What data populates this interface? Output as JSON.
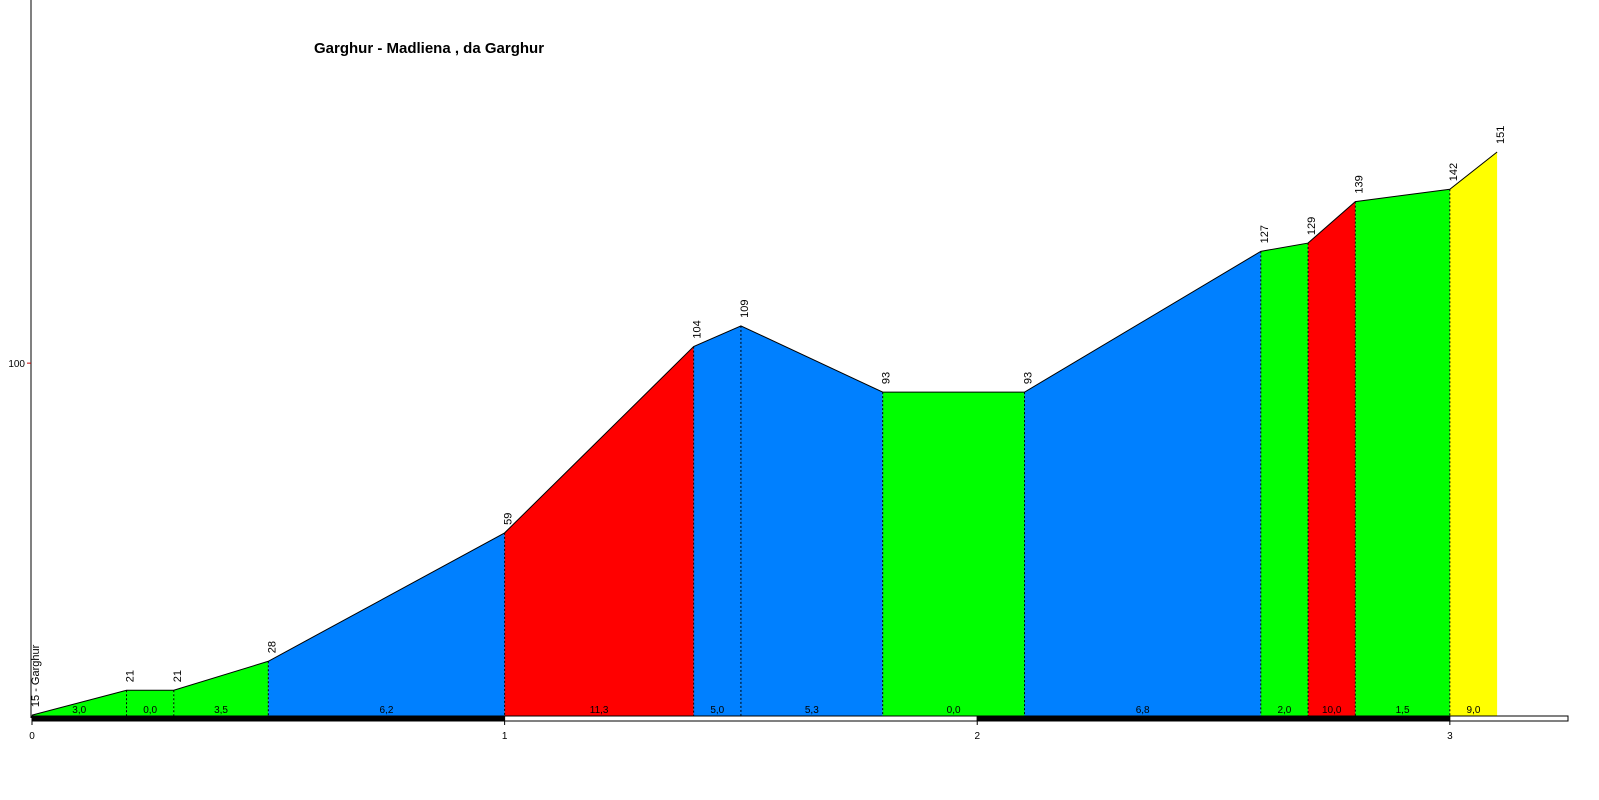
{
  "chart_data": {
    "type": "elevation-profile",
    "title": "Garghur - Madliena , da Garghur",
    "x": [
      0,
      0.2,
      0.3,
      0.5,
      1.0,
      1.4,
      1.5,
      1.8,
      2.1,
      2.6,
      2.7,
      2.8,
      3.0,
      3.1
    ],
    "values": [
      15,
      21,
      21,
      28,
      59,
      104,
      109,
      93,
      93,
      127,
      129,
      139,
      142,
      151
    ],
    "value_labels": [
      "15 - Garghur",
      "21",
      "21",
      "28",
      "59",
      "104",
      "109",
      "93",
      "93",
      "127",
      "129",
      "139",
      "142",
      "151"
    ],
    "grades": {
      "values": [
        3.0,
        0.0,
        3.5,
        6.2,
        11.3,
        5.0,
        5.3,
        0.0,
        6.8,
        2.0,
        10.0,
        1.5,
        9.0
      ],
      "value_labels": [
        "3,0",
        "0,0",
        "3,5",
        "6,2",
        "11,3",
        "5,0",
        "5,3",
        "0,0",
        "6,8",
        "2,0",
        "10,0",
        "1,5",
        "9,0"
      ],
      "colors": [
        "#00ff00",
        "#00ff00",
        "#00ff00",
        "#0080ff",
        "#ff0000",
        "#0080ff",
        "#0080ff",
        "#00ff00",
        "#0080ff",
        "#00ff00",
        "#ff0000",
        "#00ff00",
        "#ffff00"
      ]
    },
    "xlim": [
      0,
      3.25
    ],
    "ylim": [
      14.3,
      187.7
    ],
    "xticks": [
      0,
      1,
      2,
      3
    ],
    "yticks": [
      100
    ]
  }
}
